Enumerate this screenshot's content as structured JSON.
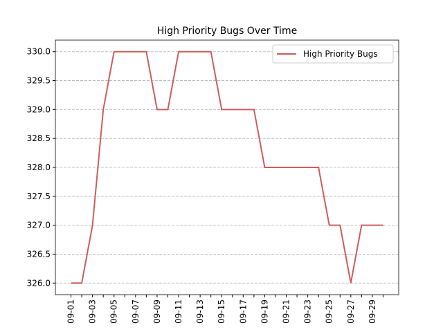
{
  "chart_data": {
    "type": "line",
    "title": "High Priority Bugs Over Time",
    "x": [
      "09-01",
      null,
      "09-03",
      null,
      "09-05",
      null,
      "09-07",
      null,
      "09-09",
      null,
      "09-11",
      null,
      "09-13",
      null,
      "09-15",
      null,
      "09-17",
      null,
      "09-19",
      null,
      "09-21",
      null,
      "09-23",
      null,
      "09-25",
      null,
      "09-27",
      null,
      "09-29",
      null
    ],
    "series": [
      {
        "name": "High Priority Bugs",
        "color": "#cd5c5c",
        "values": [
          326,
          326,
          327,
          329,
          330,
          330,
          330,
          330,
          329,
          329,
          330,
          330,
          330,
          330,
          329,
          329,
          329,
          329,
          328,
          328,
          328,
          328,
          328,
          328,
          327,
          327,
          326,
          327,
          327,
          327
        ]
      }
    ],
    "ylim": [
      325.8,
      330.2
    ],
    "yticks": [
      {
        "value": 326,
        "label": "326.0"
      },
      {
        "value": 326.5,
        "label": "326.5"
      },
      {
        "value": 327,
        "label": "327.0"
      },
      {
        "value": 327.5,
        "label": "327.5"
      },
      {
        "value": 328,
        "label": "328.0"
      },
      {
        "value": 328.5,
        "label": "328.5"
      },
      {
        "value": 329,
        "label": "329.0"
      },
      {
        "value": 329.5,
        "label": "329.5"
      },
      {
        "value": 330,
        "label": "330.0"
      }
    ],
    "grid": true,
    "legend": "upper right"
  }
}
